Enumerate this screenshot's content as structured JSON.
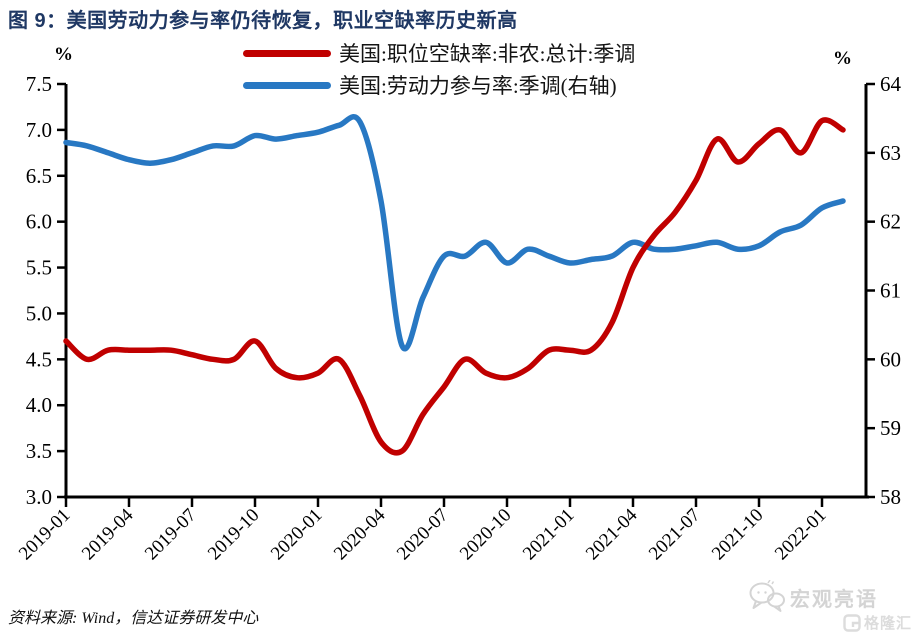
{
  "title": "图 9：美国劳动力参与率仍待恢复，职业空缺率历史新高",
  "left_axis_unit": "%",
  "right_axis_unit": "%",
  "legend": [
    {
      "label": "美国:职位空缺率:非农:总计:季调",
      "color": "#c00000"
    },
    {
      "label": "美国:劳动力参与率:季调(右轴)",
      "color": "#2878c3"
    }
  ],
  "source_note": "资料来源: Wind，信达证券研发中心",
  "watermarks": {
    "wechat_name": "宏观亮语",
    "platform_name": "格隆汇"
  },
  "colors": {
    "red_series": "#c00000",
    "blue_series": "#2878c3",
    "title_navy": "#1f3864",
    "axis_black": "#000000",
    "watermark_gray": "#d4d4d4"
  },
  "chart_data": {
    "type": "line",
    "x": [
      "2019-01",
      "2019-02",
      "2019-03",
      "2019-04",
      "2019-05",
      "2019-06",
      "2019-07",
      "2019-08",
      "2019-09",
      "2019-10",
      "2019-11",
      "2019-12",
      "2020-01",
      "2020-02",
      "2020-03",
      "2020-04",
      "2020-05",
      "2020-06",
      "2020-07",
      "2020-08",
      "2020-09",
      "2020-10",
      "2020-11",
      "2020-12",
      "2021-01",
      "2021-02",
      "2021-03",
      "2021-04",
      "2021-05",
      "2021-06",
      "2021-07",
      "2021-08",
      "2021-09",
      "2021-10",
      "2021-11",
      "2021-12",
      "2022-01",
      "2022-02"
    ],
    "x_tick_labels": [
      "2019-01",
      "2019-04",
      "2019-07",
      "2019-10",
      "2020-01",
      "2020-04",
      "2020-07",
      "2020-10",
      "2021-01",
      "2021-04",
      "2021-07",
      "2021-10",
      "2022-01"
    ],
    "left_axis": {
      "label": "%",
      "min": 3.0,
      "max": 7.5,
      "step": 0.5
    },
    "right_axis": {
      "label": "%",
      "min": 58,
      "max": 64,
      "step": 1
    },
    "grid": false,
    "legend_position": "top",
    "series": [
      {
        "name": "美国:职位空缺率:非农:总计:季调",
        "axis": "left",
        "color": "#c00000",
        "values": [
          4.7,
          4.5,
          4.6,
          4.6,
          4.6,
          4.6,
          4.55,
          4.5,
          4.5,
          4.7,
          4.4,
          4.3,
          4.35,
          4.5,
          4.1,
          3.6,
          3.5,
          3.9,
          4.2,
          4.5,
          4.35,
          4.3,
          4.4,
          4.6,
          4.6,
          4.6,
          4.9,
          5.5,
          5.85,
          6.1,
          6.45,
          6.9,
          6.65,
          6.85,
          7.0,
          6.75,
          7.1,
          7.0
        ]
      },
      {
        "name": "美国:劳动力参与率:季调(右轴)",
        "axis": "right",
        "color": "#2878c3",
        "values": [
          63.15,
          63.1,
          63.0,
          62.9,
          62.85,
          62.9,
          63.0,
          63.1,
          63.1,
          63.25,
          63.2,
          63.25,
          63.3,
          63.4,
          63.45,
          62.3,
          60.2,
          60.9,
          61.5,
          61.5,
          61.7,
          61.4,
          61.6,
          61.5,
          61.4,
          61.45,
          61.5,
          61.7,
          61.6,
          61.6,
          61.65,
          61.7,
          61.6,
          61.65,
          61.85,
          61.95,
          62.2,
          62.3
        ]
      }
    ]
  }
}
